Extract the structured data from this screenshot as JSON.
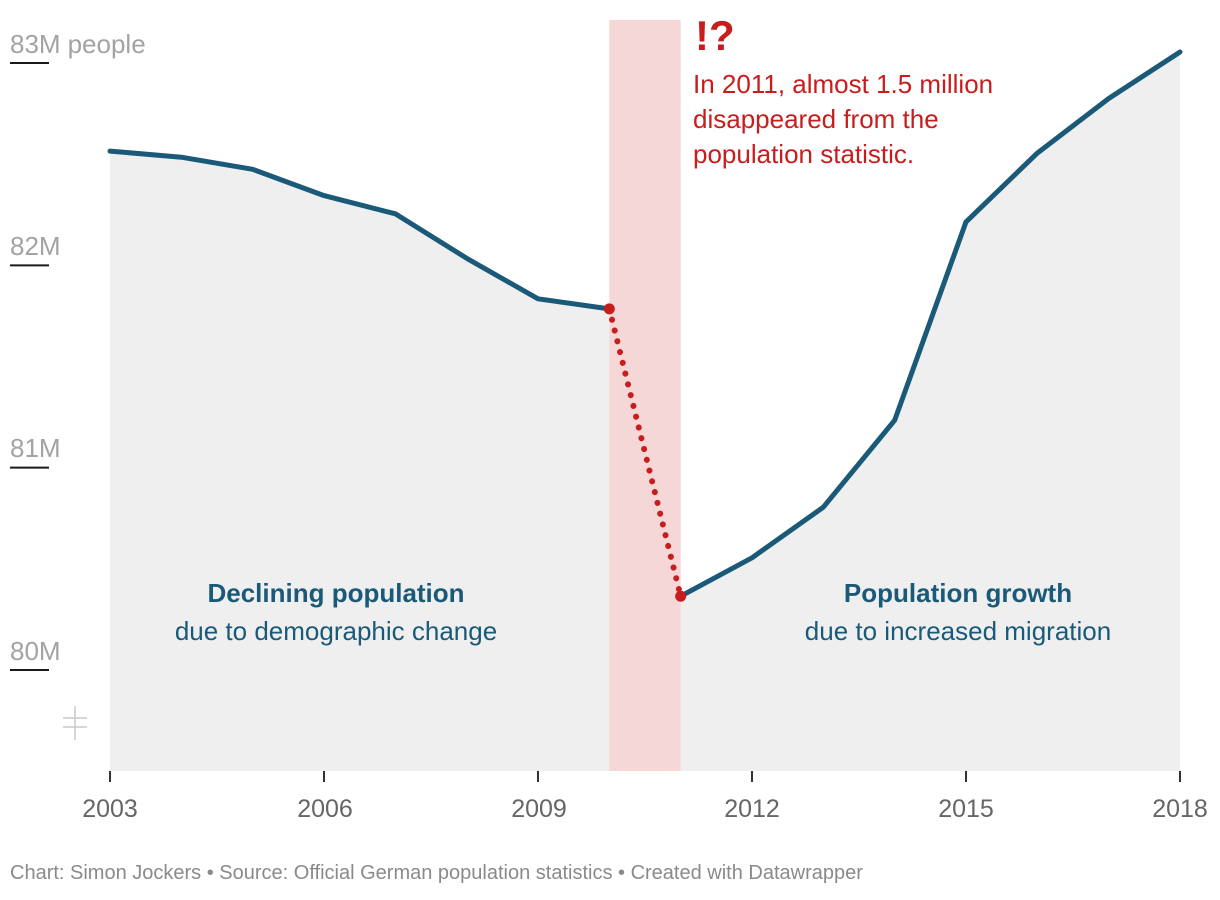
{
  "chart_data": {
    "type": "line",
    "title": "",
    "ylabel": "people",
    "ylim": [
      79.4,
      83.1
    ],
    "y_ticks": [
      {
        "value": 83,
        "label": "83M"
      },
      {
        "value": 82,
        "label": "82M"
      },
      {
        "value": 81,
        "label": "81M"
      },
      {
        "value": 80,
        "label": "80M"
      }
    ],
    "y_unit": "people",
    "x_ticks": [
      2003,
      2006,
      2009,
      2012,
      2015,
      2018
    ],
    "x_tick_labels": [
      "2003",
      "2006",
      "2009",
      "2012",
      "2015",
      "2018"
    ],
    "xlim": [
      2003,
      2018
    ],
    "series": [
      {
        "name": "Population",
        "color": "#1a5a78",
        "x": [
          2003,
          2004,
          2005,
          2006,
          2007,
          2008,
          2009,
          2010,
          2011,
          2012,
          2013,
          2014,
          2015,
          2016,
          2017,
          2018
        ],
        "values": [
          82.53,
          82.5,
          82.44,
          82.31,
          82.22,
          82.0,
          81.8,
          81.75,
          80.33,
          80.52,
          80.77,
          81.2,
          82.18,
          82.52,
          82.79,
          83.02
        ]
      }
    ],
    "break_segment": {
      "from_year": 2010,
      "to_year": 2011,
      "color": "#c71e1d"
    },
    "highlight_band": {
      "from_year": 2010,
      "to_year": 2011,
      "color": "#f5d7d8"
    },
    "area_fill_color": "#efefef",
    "annotations": {
      "alert_mark": "!?",
      "alert_lines": [
        "In 2011, almost 1.5 million",
        "disappeared from the",
        "population statistic."
      ],
      "left_title": "Declining population",
      "left_subtitle": "due to demographic change",
      "right_title": "Population growth",
      "right_subtitle": "due to increased migration"
    }
  },
  "footer": {
    "credit": "Chart: Simon Jockers",
    "separator": " • ",
    "source": "Source: Official German population statistics",
    "tool": "Created with Datawrapper"
  }
}
